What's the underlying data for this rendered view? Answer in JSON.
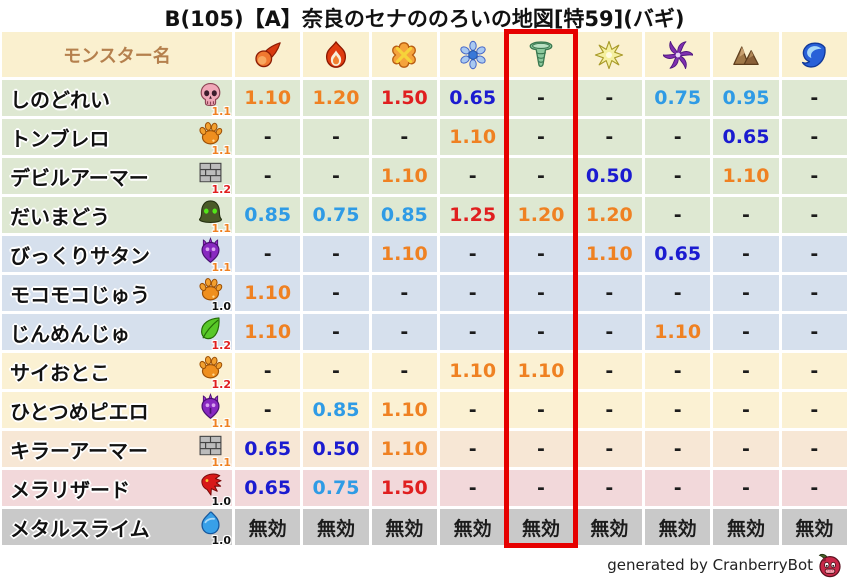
{
  "title": "B(105)【A】奈良のセナののろいの地図[特59](バギ)",
  "footer": {
    "credit": "generated by CranberryBot",
    "icon": "cranberry-icon"
  },
  "colors": {
    "header_bg": "#faf0cf",
    "header_text": "#b5804d",
    "highlight_box": "#e60000",
    "value_orange": "#ef8122",
    "value_red": "#e01f1f",
    "value_lightblue": "#2f9be5",
    "value_darkblue": "#1b1bd0",
    "value_black": "#1c1c1c",
    "row_green": "#dee8d2",
    "row_blue": "#d6e0ed",
    "row_cream": "#fbf1d3",
    "row_peach": "#f7e7d5",
    "row_pink": "#f2d8da",
    "row_gray": "#c9c9c9"
  },
  "table": {
    "name_header": "モンスター名",
    "element_icons": [
      "fireball-icon",
      "flame-icon",
      "explosion-icon",
      "snowflake-icon",
      "tornado-icon",
      "starburst-icon",
      "pinwheel-icon",
      "mountain-icon",
      "wave-icon"
    ],
    "highlighted_column": 5,
    "rows": [
      {
        "name": "しのどれい",
        "family_icon": "skull-icon",
        "badge": "1.1",
        "badge_color": "orange",
        "row_color": "green",
        "values": [
          "1.10",
          "1.20",
          "1.50",
          "0.65",
          "-",
          "-",
          "0.75",
          "0.95",
          "-"
        ],
        "value_colors": [
          "orange",
          "orange",
          "red",
          "darkblue",
          "black",
          "black",
          "lightblue",
          "lightblue",
          "black"
        ]
      },
      {
        "name": "トンブレロ",
        "family_icon": "paw-icon",
        "badge": "1.1",
        "badge_color": "orange",
        "row_color": "green",
        "values": [
          "-",
          "-",
          "-",
          "1.10",
          "-",
          "-",
          "-",
          "0.65",
          "-"
        ],
        "value_colors": [
          "black",
          "black",
          "black",
          "orange",
          "black",
          "black",
          "black",
          "darkblue",
          "black"
        ]
      },
      {
        "name": "デビルアーマー",
        "family_icon": "brick-icon",
        "badge": "1.2",
        "badge_color": "red",
        "row_color": "green",
        "values": [
          "-",
          "-",
          "1.10",
          "-",
          "-",
          "0.50",
          "-",
          "1.10",
          "-"
        ],
        "value_colors": [
          "black",
          "black",
          "orange",
          "black",
          "black",
          "darkblue",
          "black",
          "orange",
          "black"
        ]
      },
      {
        "name": "だいまどう",
        "family_icon": "hood-icon",
        "badge": "1.1",
        "badge_color": "orange",
        "row_color": "green",
        "values": [
          "0.85",
          "0.75",
          "0.85",
          "1.25",
          "1.20",
          "1.20",
          "-",
          "-",
          "-"
        ],
        "value_colors": [
          "lightblue",
          "lightblue",
          "lightblue",
          "red",
          "orange",
          "orange",
          "black",
          "black",
          "black"
        ]
      },
      {
        "name": "びっくりサタン",
        "family_icon": "trident-icon",
        "badge": "1.1",
        "badge_color": "orange",
        "row_color": "blue",
        "values": [
          "-",
          "-",
          "1.10",
          "-",
          "-",
          "1.10",
          "0.65",
          "-",
          "-"
        ],
        "value_colors": [
          "black",
          "black",
          "orange",
          "black",
          "black",
          "orange",
          "darkblue",
          "black",
          "black"
        ]
      },
      {
        "name": "モコモコじゅう",
        "family_icon": "paw-icon",
        "badge": "1.0",
        "badge_color": "black",
        "row_color": "blue",
        "values": [
          "1.10",
          "-",
          "-",
          "-",
          "-",
          "-",
          "-",
          "-",
          "-"
        ],
        "value_colors": [
          "orange",
          "black",
          "black",
          "black",
          "black",
          "black",
          "black",
          "black",
          "black"
        ]
      },
      {
        "name": "じんめんじゅ",
        "family_icon": "leaf-icon",
        "badge": "1.2",
        "badge_color": "red",
        "row_color": "blue",
        "values": [
          "1.10",
          "-",
          "-",
          "-",
          "-",
          "-",
          "1.10",
          "-",
          "-"
        ],
        "value_colors": [
          "orange",
          "black",
          "black",
          "black",
          "black",
          "black",
          "orange",
          "black",
          "black"
        ]
      },
      {
        "name": "サイおとこ",
        "family_icon": "paw-icon",
        "badge": "1.2",
        "badge_color": "red",
        "row_color": "cream",
        "values": [
          "-",
          "-",
          "-",
          "1.10",
          "1.10",
          "-",
          "-",
          "-",
          "-"
        ],
        "value_colors": [
          "black",
          "black",
          "black",
          "orange",
          "orange",
          "black",
          "black",
          "black",
          "black"
        ]
      },
      {
        "name": "ひとつめピエロ",
        "family_icon": "trident-icon",
        "badge": "1.1",
        "badge_color": "orange",
        "row_color": "cream",
        "values": [
          "-",
          "0.85",
          "1.10",
          "-",
          "-",
          "-",
          "-",
          "-",
          "-"
        ],
        "value_colors": [
          "black",
          "lightblue",
          "orange",
          "black",
          "black",
          "black",
          "black",
          "black",
          "black"
        ]
      },
      {
        "name": "キラーアーマー",
        "family_icon": "brick-icon",
        "badge": "1.1",
        "badge_color": "orange",
        "row_color": "peach",
        "values": [
          "0.65",
          "0.50",
          "1.10",
          "-",
          "-",
          "-",
          "-",
          "-",
          "-"
        ],
        "value_colors": [
          "darkblue",
          "darkblue",
          "orange",
          "black",
          "black",
          "black",
          "black",
          "black",
          "black"
        ]
      },
      {
        "name": "メラリザード",
        "family_icon": "dragon-icon",
        "badge": "1.0",
        "badge_color": "black",
        "row_color": "pink",
        "values": [
          "0.65",
          "0.75",
          "1.50",
          "-",
          "-",
          "-",
          "-",
          "-",
          "-"
        ],
        "value_colors": [
          "darkblue",
          "lightblue",
          "red",
          "black",
          "black",
          "black",
          "black",
          "black",
          "black"
        ]
      },
      {
        "name": "メタルスライム",
        "family_icon": "slime-icon",
        "badge": "1.0",
        "badge_color": "black",
        "row_color": "gray",
        "values": [
          "無効",
          "無効",
          "無効",
          "無効",
          "無効",
          "無効",
          "無効",
          "無効",
          "無効"
        ],
        "value_colors": [
          "black",
          "black",
          "black",
          "black",
          "black",
          "black",
          "black",
          "black",
          "black"
        ]
      }
    ]
  },
  "chart_data": {
    "type": "table",
    "title": "B(105)【A】奈良のセナののろいの地図[特59](バギ)",
    "columns": [
      "モンスター名",
      "fireball",
      "flame",
      "explosion",
      "snowflake",
      "tornado",
      "starburst",
      "pinwheel",
      "mountain",
      "wave"
    ],
    "highlighted_column": "tornado",
    "rows": [
      {
        "name": "しのどれい",
        "multiplier": "1.1",
        "values": [
          "1.10",
          "1.20",
          "1.50",
          "0.65",
          "-",
          "-",
          "0.75",
          "0.95",
          "-"
        ]
      },
      {
        "name": "トンブレロ",
        "multiplier": "1.1",
        "values": [
          "-",
          "-",
          "-",
          "1.10",
          "-",
          "-",
          "-",
          "0.65",
          "-"
        ]
      },
      {
        "name": "デビルアーマー",
        "multiplier": "1.2",
        "values": [
          "-",
          "-",
          "1.10",
          "-",
          "-",
          "0.50",
          "-",
          "1.10",
          "-"
        ]
      },
      {
        "name": "だいまどう",
        "multiplier": "1.1",
        "values": [
          "0.85",
          "0.75",
          "0.85",
          "1.25",
          "1.20",
          "1.20",
          "-",
          "-",
          "-"
        ]
      },
      {
        "name": "びっくりサタン",
        "multiplier": "1.1",
        "values": [
          "-",
          "-",
          "1.10",
          "-",
          "-",
          "1.10",
          "0.65",
          "-",
          "-"
        ]
      },
      {
        "name": "モコモコじゅう",
        "multiplier": "1.0",
        "values": [
          "1.10",
          "-",
          "-",
          "-",
          "-",
          "-",
          "-",
          "-",
          "-"
        ]
      },
      {
        "name": "じんめんじゅ",
        "multiplier": "1.2",
        "values": [
          "1.10",
          "-",
          "-",
          "-",
          "-",
          "-",
          "1.10",
          "-",
          "-"
        ]
      },
      {
        "name": "サイおとこ",
        "multiplier": "1.2",
        "values": [
          "-",
          "-",
          "-",
          "1.10",
          "1.10",
          "-",
          "-",
          "-",
          "-"
        ]
      },
      {
        "name": "ひとつめピエロ",
        "multiplier": "1.1",
        "values": [
          "-",
          "0.85",
          "1.10",
          "-",
          "-",
          "-",
          "-",
          "-",
          "-"
        ]
      },
      {
        "name": "キラーアーマー",
        "multiplier": "1.1",
        "values": [
          "0.65",
          "0.50",
          "1.10",
          "-",
          "-",
          "-",
          "-",
          "-",
          "-"
        ]
      },
      {
        "name": "メラリザード",
        "multiplier": "1.0",
        "values": [
          "0.65",
          "0.75",
          "1.50",
          "-",
          "-",
          "-",
          "-",
          "-",
          "-"
        ]
      },
      {
        "name": "メタルスライム",
        "multiplier": "1.0",
        "values": [
          "無効",
          "無効",
          "無効",
          "無効",
          "無効",
          "無効",
          "無効",
          "無効",
          "無効"
        ]
      }
    ]
  }
}
